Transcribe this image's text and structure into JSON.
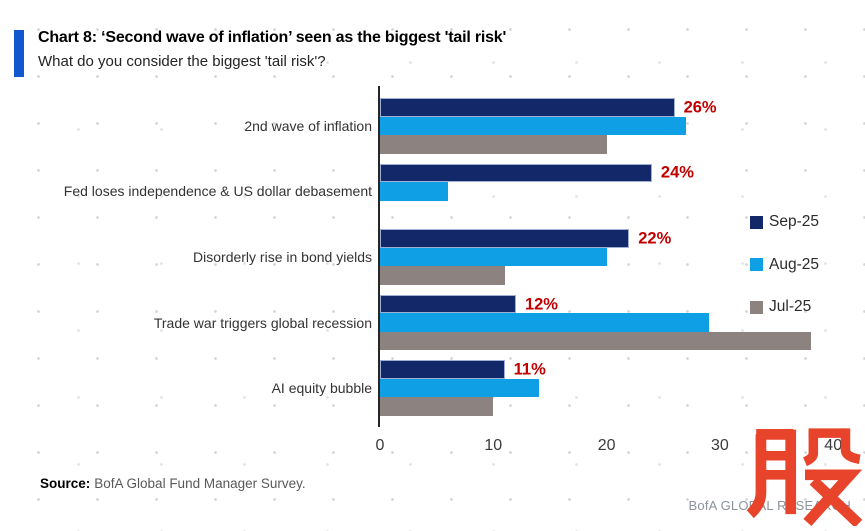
{
  "header": {
    "title": "Chart 8: ‘Second wave of inflation’ seen as the biggest 'tail risk'",
    "subtitle": "What do you consider the biggest 'tail risk'?",
    "accent_color": "#1257ce"
  },
  "chart_data": {
    "type": "bar",
    "orientation": "horizontal",
    "categories": [
      "2nd wave of inflation",
      "Fed loses independence & US dollar debasement",
      "Disorderly rise in bond yields",
      "Trade war triggers global recession",
      "AI equity bubble"
    ],
    "series": [
      {
        "name": "Sep-25",
        "color": "#132868",
        "values": [
          26,
          24,
          22,
          12,
          11
        ]
      },
      {
        "name": "Aug-25",
        "color": "#0f9fe4",
        "values": [
          27,
          6,
          20,
          29,
          14
        ]
      },
      {
        "name": "Jul-25",
        "color": "#8c8280",
        "values": [
          20,
          null,
          11,
          38,
          10
        ]
      }
    ],
    "value_labels": [
      "26%",
      "24%",
      "22%",
      "12%",
      "11%"
    ],
    "value_label_color": "#c00000",
    "xlim": [
      0,
      42
    ],
    "x_ticks": [
      0,
      10,
      20,
      30,
      40
    ],
    "grid": false,
    "legend_position": "right"
  },
  "footer": {
    "source_label": "Source:",
    "source_text": "BofA Global Fund Manager Survey.",
    "brand": "BofA GLOBAL RESEARCH"
  },
  "watermark": {
    "glyph": "股",
    "color": "#e8432b"
  }
}
